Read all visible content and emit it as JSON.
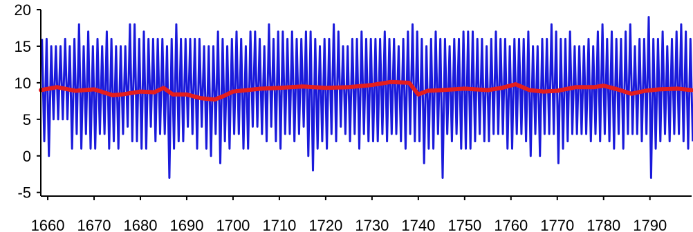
{
  "chart_data": {
    "type": "line",
    "xlim": [
      1658.5,
      1799
    ],
    "ylim": [
      -5.5,
      20
    ],
    "x_ticks": [
      1660,
      1670,
      1680,
      1690,
      1700,
      1710,
      1720,
      1730,
      1740,
      1750,
      1760,
      1770,
      1780,
      1790
    ],
    "x_tick_labels": [
      "1660",
      "1670",
      "1680",
      "1690",
      "1700",
      "1710",
      "1720",
      "1730",
      "1740",
      "1750",
      "1760",
      "1770",
      "1780",
      "1790"
    ],
    "y_ticks": [
      -5,
      0,
      5,
      10,
      15,
      20
    ],
    "y_tick_labels": [
      "-5",
      "0",
      "5",
      "10",
      "15",
      "20"
    ],
    "grid": false,
    "legend": "none",
    "series": [
      {
        "color": "#1a1adb",
        "style": "seasonal-oscillation",
        "annual_max": [
          16,
          16,
          15,
          15,
          15,
          16,
          15,
          16,
          18,
          15,
          17,
          15,
          16,
          15,
          17,
          16,
          15,
          15,
          15,
          18,
          18,
          16,
          17,
          16,
          16,
          16,
          16,
          15,
          16,
          18,
          16,
          16,
          16,
          16,
          16,
          15,
          15,
          15,
          17,
          16,
          15,
          16,
          17,
          16,
          15,
          17,
          17,
          16,
          15,
          18,
          16,
          17,
          17,
          16,
          17,
          16,
          16,
          17,
          17,
          16,
          15,
          16,
          16,
          18,
          17,
          15,
          15,
          16,
          16,
          17,
          16,
          16,
          16,
          16,
          17,
          16,
          16,
          15,
          16,
          17,
          18,
          17,
          16,
          15,
          16,
          17,
          16,
          16,
          15,
          16,
          16,
          17,
          17,
          17,
          16,
          16,
          15,
          16,
          17,
          16,
          16,
          15,
          16,
          16,
          16,
          17,
          15,
          15,
          16,
          16,
          18,
          17,
          16,
          16,
          17,
          15,
          15,
          15,
          16,
          15,
          17,
          18,
          16,
          17,
          16,
          16,
          17,
          18,
          15,
          16,
          16,
          19,
          16,
          16,
          17,
          15,
          16,
          17,
          18,
          17,
          16
        ],
        "annual_min": [
          2,
          0,
          5,
          5,
          5,
          5,
          1,
          3,
          1,
          3,
          1,
          1,
          3,
          3,
          1,
          2,
          1,
          3,
          4,
          2,
          2,
          1,
          1,
          4,
          2,
          3,
          3,
          -3,
          1,
          2,
          2,
          4,
          3,
          1,
          4,
          1,
          0,
          3,
          -1,
          2,
          1,
          3,
          3,
          1,
          1,
          4,
          4,
          3,
          2,
          4,
          2,
          1,
          3,
          3,
          2,
          3,
          4,
          0,
          -2,
          1,
          2,
          1,
          3,
          2,
          4,
          3,
          2,
          3,
          1,
          3,
          2,
          2,
          2,
          3,
          2,
          3,
          3,
          2,
          1,
          3,
          2,
          2,
          -1,
          1,
          1,
          3,
          -3,
          3,
          2,
          3,
          1,
          1,
          1,
          2,
          3,
          2,
          2,
          3,
          3,
          3,
          1,
          1,
          3,
          3,
          2,
          0,
          3,
          0,
          3,
          3,
          3,
          -1,
          1,
          2,
          3,
          3,
          3,
          3,
          2,
          3,
          2,
          3,
          2,
          1,
          3,
          1,
          3,
          3,
          3,
          2,
          3,
          -3,
          1,
          2,
          3,
          2,
          3,
          3,
          2,
          1,
          2
        ]
      },
      {
        "color": "#e41e1e",
        "style": "moving-average",
        "x": [
          1658.5,
          1662,
          1666,
          1670,
          1674,
          1676,
          1680,
          1683,
          1685,
          1687,
          1690,
          1693,
          1696,
          1698,
          1700,
          1703,
          1706,
          1710,
          1715,
          1720,
          1725,
          1730,
          1734,
          1738,
          1740,
          1742,
          1745,
          1750,
          1755,
          1758,
          1761,
          1764,
          1767,
          1770,
          1774,
          1778,
          1780,
          1783,
          1786,
          1789,
          1792,
          1796,
          1799
        ],
        "y": [
          9.0,
          9.4,
          8.9,
          9.1,
          8.3,
          8.4,
          8.8,
          8.7,
          9.3,
          8.4,
          8.4,
          7.9,
          7.7,
          8.2,
          8.8,
          9.0,
          9.2,
          9.3,
          9.5,
          9.3,
          9.4,
          9.7,
          10.1,
          10.0,
          8.4,
          8.9,
          9.0,
          9.2,
          9.0,
          9.3,
          9.8,
          9.0,
          8.8,
          8.9,
          9.4,
          9.4,
          9.6,
          9.1,
          8.5,
          8.9,
          9.1,
          9.2,
          9.0
        ]
      }
    ]
  }
}
